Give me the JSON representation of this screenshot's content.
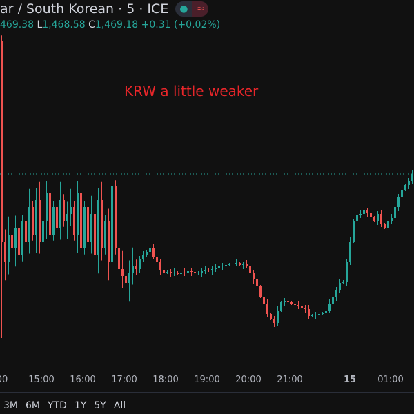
{
  "header": {
    "title": "ar / South Korean · 5 · ICE",
    "status_dot": "live-dot-icon",
    "status_wave": "≈"
  },
  "ohlc": {
    "o_value": "469.38",
    "l_label": "L",
    "l_value": "1,468.58",
    "c_label": "C",
    "c_value": "1,469.18",
    "change": "+0.31 (+0.02%)"
  },
  "annotation": "KRW a little weaker",
  "colors": {
    "up": "#26a69a",
    "down": "#ef5350",
    "annotation": "#e8262a",
    "background": "#111111"
  },
  "x_axis": [
    "00",
    "15:00",
    "16:00",
    "17:00",
    "18:00",
    "19:00",
    "20:00",
    "21:00",
    "15",
    "01:00"
  ],
  "ranges": [
    "3M",
    "6M",
    "YTD",
    "1Y",
    "5Y",
    "All"
  ],
  "chart_data": {
    "type": "candlestick",
    "ylim": [
      1463.62,
      1474.22
    ],
    "last_price": 1469.18,
    "first_open": 1473.02,
    "first_low": 1464.42,
    "closes": [
      1467.22,
      1466.62,
      1467.42,
      1467.02,
      1467.62,
      1466.82,
      1467.82,
      1467.22,
      1468.22,
      1467.42,
      1468.42,
      1467.22,
      1467.82,
      1468.62,
      1467.42,
      1468.22,
      1467.62,
      1468.42,
      1467.82,
      1468.02,
      1468.22,
      1467.42,
      1468.62,
      1467.02,
      1468.22,
      1467.22,
      1468.02,
      1466.82,
      1468.42,
      1467.02,
      1467.82,
      1466.62,
      1468.82,
      1467.02,
      1466.42,
      1466.22,
      1466.02,
      1466.32,
      1466.52,
      1466.42,
      1466.72,
      1466.82,
      1466.92,
      1467.02,
      1466.78,
      1466.62,
      1466.38,
      1466.32,
      1466.34,
      1466.3,
      1466.32,
      1466.28,
      1466.32,
      1466.3,
      1466.36,
      1466.34,
      1466.3,
      1466.32,
      1466.36,
      1466.4,
      1466.38,
      1466.42,
      1466.46,
      1466.5,
      1466.52,
      1466.54,
      1466.56,
      1466.58,
      1466.6,
      1466.54,
      1466.56,
      1466.52,
      1466.32,
      1466.12,
      1465.92,
      1465.62,
      1465.42,
      1465.12,
      1464.98,
      1464.86,
      1465.22,
      1465.46,
      1465.5,
      1465.46,
      1465.42,
      1465.38,
      1465.34,
      1465.3,
      1465.26,
      1465.06,
      1465.08,
      1465.1,
      1465.12,
      1465.14,
      1465.22,
      1465.42,
      1465.62,
      1465.82,
      1466.02,
      1466.06,
      1466.62,
      1467.22,
      1467.82,
      1467.98,
      1468.02,
      1468.12,
      1468.06,
      1467.92,
      1467.82,
      1468.02,
      1467.72,
      1467.62,
      1467.82,
      1467.9,
      1468.22,
      1468.52,
      1468.72,
      1468.86,
      1468.98,
      1469.18
    ]
  }
}
